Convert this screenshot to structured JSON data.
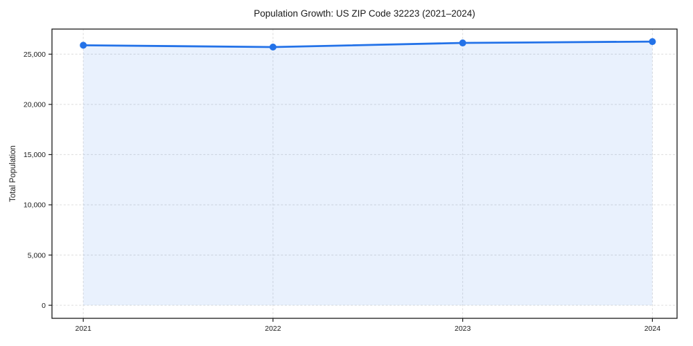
{
  "figure": {
    "background": "#ffffff"
  },
  "chart_data": {
    "type": "area",
    "title": "Population Growth: US ZIP Code 32223 (2021–2024)",
    "xlabel": "",
    "ylabel": "Total Population",
    "x": [
      2021,
      2022,
      2023,
      2024
    ],
    "series": [
      {
        "name": "Total Population",
        "values": [
          25890,
          25710,
          26120,
          26250
        ]
      }
    ],
    "xtick_labels": [
      "2021",
      "2022",
      "2023",
      "2024"
    ],
    "ytick_values": [
      0,
      5000,
      10000,
      15000,
      20000,
      25000
    ],
    "ytick_labels": [
      "0",
      "5,000",
      "10,000",
      "15,000",
      "20,000",
      "25,000"
    ],
    "xlim": [
      2020.835,
      2024.13
    ],
    "ylim": [
      -1300,
      27500
    ],
    "grid": true,
    "grid_style": "dashed",
    "legend": "none",
    "line_color": "#2372e8",
    "marker": "circle",
    "fill_color": "#2372e8",
    "fill_opacity": 0.1,
    "grid_color": "#dcdcdc",
    "axis_color": "#1a1a1a",
    "text_color": "#1a1a1a"
  }
}
